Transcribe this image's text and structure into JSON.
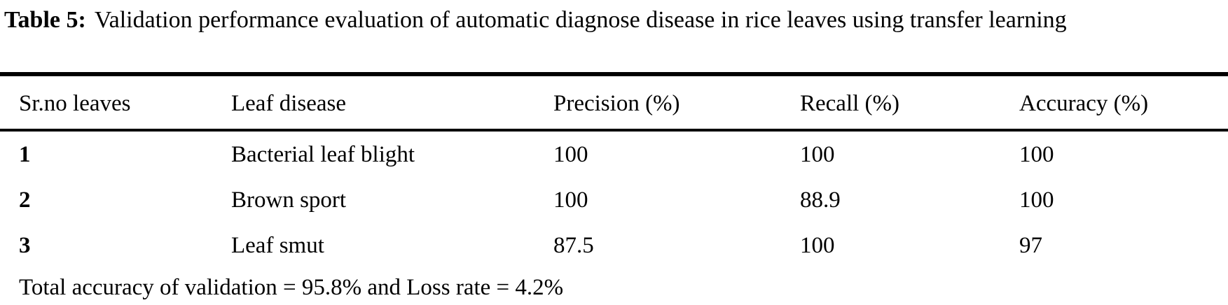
{
  "caption": {
    "label": "Table 5:",
    "text": "Validation performance evaluation of automatic diagnose disease in rice leaves using transfer learning"
  },
  "table": {
    "columns": [
      "Sr.no leaves",
      "Leaf disease",
      "Precision (%)",
      "Recall (%)",
      "Accuracy (%)"
    ],
    "rows": [
      {
        "sr": "1",
        "disease": "Bacterial leaf blight",
        "precision": "100",
        "recall": "100",
        "accuracy": "100"
      },
      {
        "sr": "2",
        "disease": "Brown sport",
        "precision": "100",
        "recall": "88.9",
        "accuracy": "100"
      },
      {
        "sr": "3",
        "disease": "Leaf smut",
        "precision": "87.5",
        "recall": "100",
        "accuracy": "97"
      }
    ],
    "footer": "Total accuracy of validation = 95.8% and Loss rate = 4.2%"
  },
  "colors": {
    "text": "#000000",
    "background": "#ffffff",
    "rule": "#000000"
  }
}
